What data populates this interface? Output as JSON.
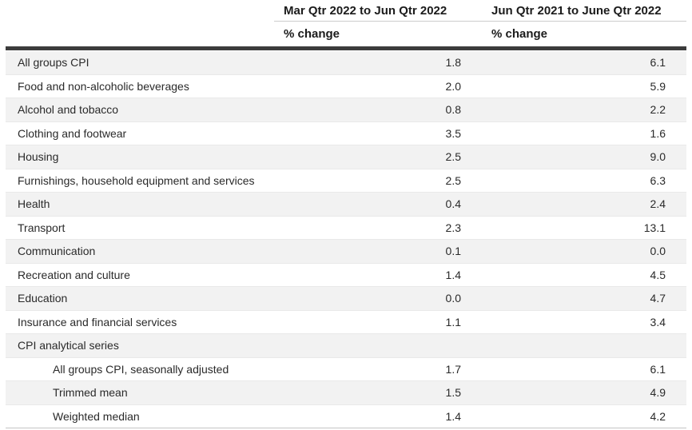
{
  "header": {
    "columns": [
      {
        "period": "Mar Qtr 2022 to Jun Qtr 2022",
        "unit": "% change"
      },
      {
        "period": "Jun Qtr 2021 to June Qtr 2022",
        "unit": "% change"
      }
    ]
  },
  "table": {
    "rows": [
      {
        "label": "All groups CPI",
        "indent": false,
        "values": [
          "1.8",
          "6.1"
        ]
      },
      {
        "label": "Food and non-alcoholic beverages",
        "indent": false,
        "values": [
          "2.0",
          "5.9"
        ]
      },
      {
        "label": "Alcohol and tobacco",
        "indent": false,
        "values": [
          "0.8",
          "2.2"
        ]
      },
      {
        "label": "Clothing and footwear",
        "indent": false,
        "values": [
          "3.5",
          "1.6"
        ]
      },
      {
        "label": "Housing",
        "indent": false,
        "values": [
          "2.5",
          "9.0"
        ]
      },
      {
        "label": "Furnishings, household equipment and services",
        "indent": false,
        "values": [
          "2.5",
          "6.3"
        ]
      },
      {
        "label": "Health",
        "indent": false,
        "values": [
          "0.4",
          "2.4"
        ]
      },
      {
        "label": "Transport",
        "indent": false,
        "values": [
          "2.3",
          "13.1"
        ]
      },
      {
        "label": "Communication",
        "indent": false,
        "values": [
          "0.1",
          "0.0"
        ]
      },
      {
        "label": "Recreation and culture",
        "indent": false,
        "values": [
          "1.4",
          "4.5"
        ]
      },
      {
        "label": "Education",
        "indent": false,
        "values": [
          "0.0",
          "4.7"
        ]
      },
      {
        "label": "Insurance and financial services",
        "indent": false,
        "values": [
          "1.1",
          "3.4"
        ]
      },
      {
        "label": "CPI analytical series",
        "indent": false,
        "values": [
          "",
          ""
        ]
      },
      {
        "label": "All groups CPI, seasonally adjusted",
        "indent": true,
        "values": [
          "1.7",
          "6.1"
        ]
      },
      {
        "label": "Trimmed mean",
        "indent": true,
        "values": [
          "1.5",
          "4.9"
        ]
      },
      {
        "label": "Weighted median",
        "indent": true,
        "values": [
          "1.4",
          "4.2"
        ]
      }
    ]
  },
  "colors": {
    "stripe_row": "#f2f2f2",
    "divider_bar": "#3c3c3c",
    "header_underline": "#cccccc",
    "row_border": "#e9e9e9",
    "table_bottom_border": "#c4c4c4",
    "text": "#2a2a2a"
  },
  "chart_data": {
    "type": "table",
    "title": "",
    "categories": [
      "All groups CPI",
      "Food and non-alcoholic beverages",
      "Alcohol and tobacco",
      "Clothing and footwear",
      "Housing",
      "Furnishings, household equipment and services",
      "Health",
      "Transport",
      "Communication",
      "Recreation and culture",
      "Education",
      "Insurance and financial services",
      "CPI analytical series",
      "All groups CPI, seasonally adjusted",
      "Trimmed mean",
      "Weighted median"
    ],
    "series": [
      {
        "name": "Mar Qtr 2022 to Jun Qtr 2022 (% change)",
        "values": [
          1.8,
          2.0,
          0.8,
          3.5,
          2.5,
          2.5,
          0.4,
          2.3,
          0.1,
          1.4,
          0.0,
          1.1,
          null,
          1.7,
          1.5,
          1.4
        ]
      },
      {
        "name": "Jun Qtr 2021 to June Qtr 2022 (% change)",
        "values": [
          6.1,
          5.9,
          2.2,
          1.6,
          9.0,
          6.3,
          2.4,
          13.1,
          0.0,
          4.5,
          4.7,
          3.4,
          null,
          6.1,
          4.9,
          4.2
        ]
      }
    ],
    "layout": {
      "grid": "horizontal-stripes",
      "value_alignment": "right",
      "sub_rows_indented_under": "CPI analytical series"
    }
  }
}
